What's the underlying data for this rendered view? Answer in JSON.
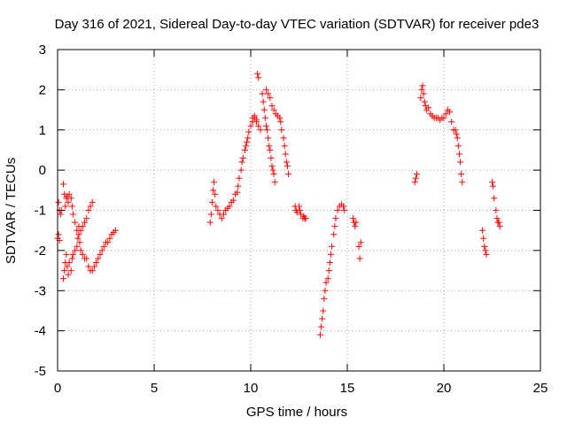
{
  "chart_data": {
    "type": "scatter",
    "title": "Day 316 of 2021, Sidereal Day-to-day VTEC variation (SDTVAR) for receiver pde3",
    "xlabel": "GPS time / hours",
    "ylabel": "SDTVAR / TECUs",
    "xlim": [
      0,
      25
    ],
    "ylim": [
      -5,
      3
    ],
    "xticks": [
      0,
      5,
      10,
      15,
      20,
      25
    ],
    "yticks": [
      -5,
      -4,
      -3,
      -2,
      -1,
      0,
      1,
      2,
      3
    ],
    "xtick_labels": [
      "0",
      "5",
      "10",
      "15",
      "20",
      "25"
    ],
    "ytick_labels": [
      "-5",
      "-4",
      "-3",
      "-2",
      "-1",
      "0",
      "1",
      "2",
      "3"
    ],
    "grid": true,
    "marker": "+",
    "color": "#ff0000",
    "series": [
      {
        "name": "SDTVAR",
        "points": [
          [
            0.0,
            -1.7
          ],
          [
            0.05,
            -1.6
          ],
          [
            0.1,
            -1.75
          ],
          [
            0.05,
            -0.8
          ],
          [
            0.1,
            -1.0
          ],
          [
            0.15,
            -1.1
          ],
          [
            0.2,
            -1.0
          ],
          [
            0.3,
            -0.35
          ],
          [
            0.35,
            -0.6
          ],
          [
            0.4,
            -0.9
          ],
          [
            0.45,
            -0.7
          ],
          [
            0.5,
            -0.65
          ],
          [
            0.55,
            -0.8
          ],
          [
            0.6,
            -0.6
          ],
          [
            0.7,
            -0.7
          ],
          [
            0.75,
            -0.9
          ],
          [
            0.8,
            -1.1
          ],
          [
            0.9,
            -1.3
          ],
          [
            1.0,
            -1.5
          ],
          [
            1.1,
            -1.6
          ],
          [
            1.2,
            -1.5
          ],
          [
            1.3,
            -1.4
          ],
          [
            1.4,
            -1.3
          ],
          [
            1.5,
            -1.2
          ],
          [
            1.6,
            -1.0
          ],
          [
            1.7,
            -0.9
          ],
          [
            1.8,
            -0.8
          ],
          [
            0.3,
            -2.7
          ],
          [
            0.35,
            -2.5
          ],
          [
            0.4,
            -2.3
          ],
          [
            0.45,
            -2.1
          ],
          [
            0.5,
            -2.4
          ],
          [
            0.55,
            -2.6
          ],
          [
            0.6,
            -2.3
          ],
          [
            0.7,
            -2.5
          ],
          [
            0.75,
            -2.2
          ],
          [
            0.8,
            -2.1
          ],
          [
            0.9,
            -2.0
          ],
          [
            1.0,
            -1.9
          ],
          [
            1.05,
            -1.7
          ],
          [
            1.1,
            -1.4
          ],
          [
            1.15,
            -1.8
          ],
          [
            1.2,
            -2.0
          ],
          [
            1.3,
            -2.1
          ],
          [
            1.4,
            -2.2
          ],
          [
            1.5,
            -2.2
          ],
          [
            1.6,
            -2.4
          ],
          [
            1.7,
            -2.5
          ],
          [
            1.8,
            -2.5
          ],
          [
            1.9,
            -2.4
          ],
          [
            2.0,
            -2.3
          ],
          [
            2.1,
            -2.2
          ],
          [
            2.2,
            -2.1
          ],
          [
            2.3,
            -2.0
          ],
          [
            2.4,
            -1.9
          ],
          [
            2.5,
            -1.8
          ],
          [
            2.6,
            -1.8
          ],
          [
            2.7,
            -1.7
          ],
          [
            2.8,
            -1.6
          ],
          [
            2.9,
            -1.55
          ],
          [
            3.0,
            -1.5
          ],
          [
            7.9,
            -1.3
          ],
          [
            7.95,
            -1.1
          ],
          [
            8.0,
            -0.8
          ],
          [
            8.05,
            -0.5
          ],
          [
            8.1,
            -0.3
          ],
          [
            8.15,
            -0.6
          ],
          [
            8.2,
            -0.9
          ],
          [
            8.3,
            -1.0
          ],
          [
            8.4,
            -1.1
          ],
          [
            8.5,
            -1.2
          ],
          [
            8.6,
            -1.1
          ],
          [
            8.7,
            -1.0
          ],
          [
            8.8,
            -0.95
          ],
          [
            8.9,
            -0.9
          ],
          [
            9.0,
            -0.8
          ],
          [
            9.1,
            -0.75
          ],
          [
            9.2,
            -0.6
          ],
          [
            9.3,
            -0.55
          ],
          [
            9.35,
            -0.4
          ],
          [
            9.4,
            -0.2
          ],
          [
            9.5,
            0.0
          ],
          [
            9.55,
            0.2
          ],
          [
            9.6,
            0.3
          ],
          [
            9.7,
            0.5
          ],
          [
            9.75,
            0.6
          ],
          [
            9.8,
            0.7
          ],
          [
            9.85,
            0.8
          ],
          [
            9.9,
            0.95
          ],
          [
            10.0,
            1.1
          ],
          [
            10.1,
            1.2
          ],
          [
            10.2,
            1.3
          ],
          [
            10.3,
            1.25
          ],
          [
            10.4,
            1.1
          ],
          [
            10.5,
            1.0
          ],
          [
            10.1,
            1.3
          ],
          [
            10.2,
            1.35
          ],
          [
            10.3,
            1.2
          ],
          [
            10.35,
            2.4
          ],
          [
            10.4,
            2.3
          ],
          [
            10.6,
            1.9
          ],
          [
            10.65,
            1.7
          ],
          [
            10.7,
            1.5
          ],
          [
            10.75,
            1.3
          ],
          [
            10.8,
            1.1
          ],
          [
            10.85,
            1.0
          ],
          [
            10.9,
            0.8
          ],
          [
            10.95,
            0.6
          ],
          [
            11.0,
            0.5
          ],
          [
            11.05,
            0.3
          ],
          [
            11.1,
            0.1
          ],
          [
            11.15,
            0.0
          ],
          [
            11.2,
            -0.1
          ],
          [
            11.25,
            -0.3
          ],
          [
            10.8,
            2.0
          ],
          [
            10.9,
            1.9
          ],
          [
            11.0,
            1.8
          ],
          [
            11.1,
            1.6
          ],
          [
            11.2,
            1.5
          ],
          [
            11.3,
            1.4
          ],
          [
            11.4,
            1.35
          ],
          [
            11.5,
            1.3
          ],
          [
            11.55,
            1.2
          ],
          [
            11.6,
            1.0
          ],
          [
            11.7,
            0.8
          ],
          [
            11.75,
            0.6
          ],
          [
            11.8,
            0.4
          ],
          [
            11.85,
            0.2
          ],
          [
            11.9,
            0.1
          ],
          [
            11.95,
            -0.1
          ],
          [
            12.3,
            -0.9
          ],
          [
            12.35,
            -1.0
          ],
          [
            12.4,
            -1.05
          ],
          [
            12.5,
            -0.9
          ],
          [
            12.55,
            -1.0
          ],
          [
            12.6,
            -1.1
          ],
          [
            12.7,
            -1.2
          ],
          [
            12.75,
            -1.15
          ],
          [
            12.8,
            -1.2
          ],
          [
            12.85,
            -1.2
          ],
          [
            13.6,
            -4.1
          ],
          [
            13.65,
            -3.9
          ],
          [
            13.7,
            -3.7
          ],
          [
            13.75,
            -3.5
          ],
          [
            13.8,
            -3.2
          ],
          [
            13.85,
            -3.0
          ],
          [
            13.9,
            -2.8
          ],
          [
            14.0,
            -2.7
          ],
          [
            14.05,
            -2.5
          ],
          [
            14.1,
            -2.3
          ],
          [
            14.15,
            -2.1
          ],
          [
            14.2,
            -1.9
          ],
          [
            14.3,
            -1.6
          ],
          [
            14.35,
            -1.4
          ],
          [
            14.4,
            -1.2
          ],
          [
            14.5,
            -1.0
          ],
          [
            14.6,
            -0.9
          ],
          [
            14.7,
            -0.85
          ],
          [
            14.8,
            -0.9
          ],
          [
            14.85,
            -1.0
          ],
          [
            15.3,
            -1.2
          ],
          [
            15.35,
            -1.3
          ],
          [
            15.4,
            -1.4
          ],
          [
            15.45,
            -1.3
          ],
          [
            15.6,
            -1.9
          ],
          [
            15.65,
            -2.2
          ],
          [
            15.7,
            -1.8
          ],
          [
            18.5,
            -0.3
          ],
          [
            18.55,
            -0.2
          ],
          [
            18.6,
            -0.1
          ],
          [
            18.8,
            1.8
          ],
          [
            18.85,
            2.0
          ],
          [
            18.9,
            2.1
          ],
          [
            18.95,
            1.9
          ],
          [
            19.0,
            1.7
          ],
          [
            19.05,
            1.6
          ],
          [
            19.1,
            1.5
          ],
          [
            19.2,
            1.55
          ],
          [
            19.3,
            1.4
          ],
          [
            19.4,
            1.35
          ],
          [
            19.5,
            1.3
          ],
          [
            19.6,
            1.3
          ],
          [
            19.7,
            1.3
          ],
          [
            19.8,
            1.25
          ],
          [
            19.9,
            1.3
          ],
          [
            20.0,
            1.3
          ],
          [
            20.1,
            1.4
          ],
          [
            20.2,
            1.5
          ],
          [
            20.3,
            1.45
          ],
          [
            20.4,
            1.2
          ],
          [
            20.5,
            1.0
          ],
          [
            20.6,
            1.0
          ],
          [
            20.65,
            0.9
          ],
          [
            20.7,
            0.8
          ],
          [
            20.75,
            0.6
          ],
          [
            20.8,
            0.4
          ],
          [
            20.85,
            0.2
          ],
          [
            20.9,
            -0.1
          ],
          [
            20.95,
            -0.3
          ],
          [
            22.0,
            -1.5
          ],
          [
            22.05,
            -1.7
          ],
          [
            22.1,
            -1.9
          ],
          [
            22.15,
            -2.0
          ],
          [
            22.2,
            -2.1
          ],
          [
            22.5,
            -0.3
          ],
          [
            22.55,
            -0.4
          ],
          [
            22.6,
            -0.7
          ],
          [
            22.7,
            -1.0
          ],
          [
            22.75,
            -1.2
          ],
          [
            22.8,
            -1.3
          ],
          [
            22.85,
            -1.3
          ],
          [
            22.9,
            -1.4
          ]
        ]
      }
    ]
  }
}
